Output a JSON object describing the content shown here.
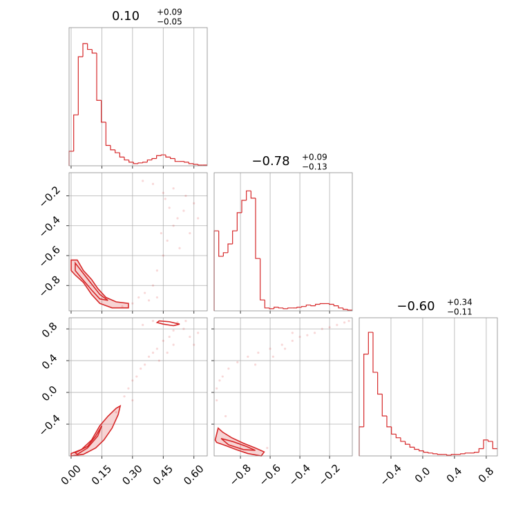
{
  "chart_data": [
    {
      "type": "histogram",
      "title": "0.10",
      "title_upper": "+0.09",
      "title_lower": "−0.05",
      "color": "#d62728",
      "bins": [
        -0.01,
        0.0125,
        0.035,
        0.0575,
        0.08,
        0.1025,
        0.125,
        0.1475,
        0.17,
        0.1925,
        0.215,
        0.2375,
        0.26,
        0.2825,
        0.305,
        0.3275,
        0.35,
        0.3725,
        0.395,
        0.4175,
        0.44,
        0.4625,
        0.485,
        0.5075,
        0.53,
        0.5525,
        0.575,
        0.5975,
        0.62,
        0.6425,
        0.665
      ],
      "counts": [
        20,
        70,
        150,
        168,
        160,
        155,
        90,
        60,
        28,
        22,
        18,
        12,
        8,
        5,
        3,
        4,
        5,
        8,
        10,
        14,
        15,
        12,
        10,
        6,
        6,
        5,
        3,
        2,
        1,
        1
      ],
      "xlim": [
        -0.01,
        0.665
      ],
      "ylim": [
        0,
        190
      ],
      "xticks": [
        0,
        0.15,
        0.3,
        0.45,
        0.6
      ],
      "grid": true,
      "xtick_labels": false
    },
    {
      "type": "scatter",
      "color": "#d62728",
      "x": [
        0.3,
        0.33,
        0.36,
        0.4,
        0.42,
        0.45,
        0.47,
        0.5,
        0.52,
        0.55,
        0.58,
        0.6,
        0.5,
        0.45,
        0.4,
        0.35,
        0.48,
        0.53,
        0.62,
        0.44,
        0.38,
        0.25,
        0.46,
        0.56,
        0.42
      ],
      "y": [
        -0.92,
        -0.88,
        -0.85,
        -0.8,
        -0.7,
        -0.6,
        -0.5,
        -0.4,
        -0.35,
        -0.3,
        -0.45,
        -0.25,
        -0.15,
        -0.18,
        -0.12,
        -0.1,
        -0.28,
        -0.55,
        -0.35,
        -0.45,
        -0.9,
        -0.94,
        -0.22,
        -0.2,
        -0.88
      ],
      "contours": [
        {
          "x": [
            0.0,
            0.03,
            0.06,
            0.1,
            0.13,
            0.17,
            0.22,
            0.28,
            0.28,
            0.2,
            0.14,
            0.1,
            0.06,
            0.02,
            0.0
          ],
          "y": [
            -0.63,
            -0.63,
            -0.7,
            -0.76,
            -0.82,
            -0.88,
            -0.91,
            -0.92,
            -0.95,
            -0.95,
            -0.92,
            -0.86,
            -0.78,
            -0.73,
            -0.7
          ]
        },
        {
          "x": [
            0.02,
            0.06,
            0.1,
            0.14,
            0.18,
            0.14,
            0.1,
            0.05,
            0.02
          ],
          "y": [
            -0.65,
            -0.72,
            -0.79,
            -0.86,
            -0.9,
            -0.89,
            -0.83,
            -0.75,
            -0.7
          ]
        }
      ],
      "xlim": [
        -0.01,
        0.665
      ],
      "ylim": [
        -0.97,
        -0.045
      ],
      "xticks": [
        0,
        0.15,
        0.3,
        0.45,
        0.6
      ],
      "yticks": [
        {
          "value": -0.2,
          "label": "−0.2"
        },
        {
          "value": -0.4,
          "label": "−0.4"
        },
        {
          "value": -0.6,
          "label": "−0.6"
        },
        {
          "value": -0.8,
          "label": "−0.8"
        }
      ],
      "grid": true,
      "xtick_labels": false,
      "ytick_labels": true
    },
    {
      "type": "histogram",
      "title": "−0.78",
      "title_upper": "+0.09",
      "title_lower": "−0.13",
      "color": "#d62728",
      "bins": [
        -0.977,
        -0.946,
        -0.915,
        -0.884,
        -0.853,
        -0.822,
        -0.791,
        -0.76,
        -0.729,
        -0.698,
        -0.667,
        -0.636,
        -0.605,
        -0.574,
        -0.543,
        -0.512,
        -0.481,
        -0.45,
        -0.419,
        -0.388,
        -0.357,
        -0.326,
        -0.295,
        -0.264,
        -0.233,
        -0.202,
        -0.171,
        -0.14,
        -0.109,
        -0.078,
        -0.047
      ],
      "counts": [
        110,
        75,
        80,
        92,
        110,
        135,
        152,
        165,
        155,
        72,
        15,
        4,
        3,
        5,
        4,
        3,
        4,
        4,
        5,
        6,
        8,
        7,
        9,
        10,
        10,
        9,
        7,
        4,
        2,
        1
      ],
      "xlim": [
        -0.977,
        -0.047
      ],
      "ylim": [
        0,
        190
      ],
      "xticks": [
        -0.8,
        -0.6,
        -0.4,
        -0.2
      ],
      "grid": true,
      "xtick_labels": false
    },
    {
      "type": "scatter",
      "color": "#d62728",
      "x": [
        0.26,
        0.28,
        0.3,
        0.32,
        0.34,
        0.36,
        0.38,
        0.4,
        0.42,
        0.45,
        0.48,
        0.5,
        0.55,
        0.58,
        0.6,
        0.43,
        0.47,
        0.52,
        0.4,
        0.35,
        0.3,
        0.22,
        0.5,
        0.56,
        0.62
      ],
      "y": [
        -0.05,
        0.05,
        0.15,
        0.2,
        0.3,
        0.35,
        0.45,
        0.5,
        0.55,
        0.65,
        0.7,
        0.78,
        0.8,
        0.7,
        0.6,
        0.4,
        0.5,
        0.88,
        0.9,
        0.85,
        -0.1,
        -0.25,
        0.6,
        0.9,
        0.75
      ],
      "contours": [
        {
          "x": [
            0.0,
            0.05,
            0.1,
            0.14,
            0.18,
            0.22,
            0.24,
            0.23,
            0.2,
            0.16,
            0.12,
            0.06,
            0.0
          ],
          "y": [
            -0.77,
            -0.72,
            -0.6,
            -0.42,
            -0.3,
            -0.2,
            -0.17,
            -0.28,
            -0.45,
            -0.6,
            -0.7,
            -0.78,
            -0.8
          ]
        },
        {
          "x": [
            0.02,
            0.08,
            0.12,
            0.15,
            0.13,
            0.08,
            0.03
          ],
          "y": [
            -0.76,
            -0.68,
            -0.55,
            -0.42,
            -0.55,
            -0.7,
            -0.78
          ]
        },
        {
          "x": [
            0.43,
            0.48,
            0.53,
            0.5,
            0.45,
            0.42
          ],
          "y": [
            0.9,
            0.89,
            0.86,
            0.84,
            0.86,
            0.88
          ]
        }
      ],
      "xlim": [
        -0.01,
        0.665
      ],
      "ylim": [
        -0.8,
        0.94
      ],
      "xticks": [
        {
          "value": 0,
          "label": "0.00"
        },
        0.15,
        {
          "value": 0.3,
          "label": "0.30"
        },
        0.45,
        {
          "value": 0.6,
          "label": "0.60"
        }
      ],
      "yticks": [
        0.8,
        0.4,
        {
          "value": 0,
          "label": "0.0"
        },
        {
          "value": -0.4,
          "label": "−0.4"
        }
      ],
      "grid": true,
      "xtick_labels": true,
      "ytick_labels": true
    },
    {
      "type": "scatter",
      "color": "#d62728",
      "x": [
        -0.96,
        -0.96,
        -0.94,
        -0.92,
        -0.88,
        -0.82,
        -0.75,
        -0.68,
        -0.6,
        -0.52,
        -0.45,
        -0.4,
        -0.35,
        -0.3,
        -0.25,
        -0.2,
        -0.15,
        -0.1,
        -0.07,
        -0.58,
        -0.5,
        -0.7,
        -0.9,
        -0.62,
        -0.45
      ],
      "y": [
        -0.1,
        0.05,
        0.15,
        0.2,
        0.3,
        0.38,
        0.45,
        0.5,
        0.55,
        0.6,
        0.65,
        0.7,
        0.72,
        0.75,
        0.8,
        0.82,
        0.85,
        0.88,
        0.9,
        0.45,
        0.55,
        0.35,
        -0.3,
        -0.7,
        0.75
      ],
      "contours": [
        {
          "x": [
            -0.97,
            -0.95,
            -0.92,
            -0.86,
            -0.78,
            -0.7,
            -0.64,
            -0.66,
            -0.75,
            -0.83,
            -0.9,
            -0.96
          ],
          "y": [
            -0.6,
            -0.45,
            -0.5,
            -0.57,
            -0.64,
            -0.7,
            -0.75,
            -0.8,
            -0.77,
            -0.72,
            -0.67,
            -0.63
          ]
        },
        {
          "x": [
            -0.93,
            -0.85,
            -0.76,
            -0.7,
            -0.78,
            -0.88
          ],
          "y": [
            -0.58,
            -0.62,
            -0.68,
            -0.73,
            -0.72,
            -0.66
          ]
        }
      ],
      "xlim": [
        -0.977,
        -0.047
      ],
      "ylim": [
        -0.8,
        0.94
      ],
      "xticks": [
        {
          "value": -0.8,
          "label": "−0.8"
        },
        {
          "value": -0.6,
          "label": "−0.6"
        },
        {
          "value": -0.4,
          "label": "−0.4"
        },
        {
          "value": -0.2,
          "label": "−0.2"
        }
      ],
      "yticks": [
        0.8,
        0.4,
        0,
        -0.4
      ],
      "grid": true,
      "xtick_labels": true,
      "ytick_labels": false
    },
    {
      "type": "histogram",
      "title": "−0.60",
      "title_upper": "+0.34",
      "title_lower": "−0.11",
      "color": "#d62728",
      "bins": [
        -0.8,
        -0.742,
        -0.684,
        -0.626,
        -0.568,
        -0.51,
        -0.452,
        -0.394,
        -0.336,
        -0.278,
        -0.22,
        -0.162,
        -0.104,
        -0.046,
        0.012,
        0.07,
        0.128,
        0.186,
        0.244,
        0.302,
        0.36,
        0.418,
        0.476,
        0.534,
        0.592,
        0.65,
        0.708,
        0.766,
        0.824,
        0.882,
        0.94
      ],
      "counts": [
        40,
        140,
        170,
        115,
        85,
        55,
        40,
        30,
        25,
        20,
        16,
        12,
        9,
        7,
        5,
        4,
        3,
        2,
        2,
        1,
        2,
        2,
        3,
        4,
        4,
        5,
        10,
        22,
        20,
        10
      ],
      "xlim": [
        -0.8,
        0.94
      ],
      "ylim": [
        0,
        190
      ],
      "xticks": [
        {
          "value": -0.4,
          "label": "−0.4"
        },
        {
          "value": 0,
          "label": "0.0"
        },
        0.4,
        0.8
      ],
      "grid": true,
      "xtick_labels": true
    }
  ]
}
